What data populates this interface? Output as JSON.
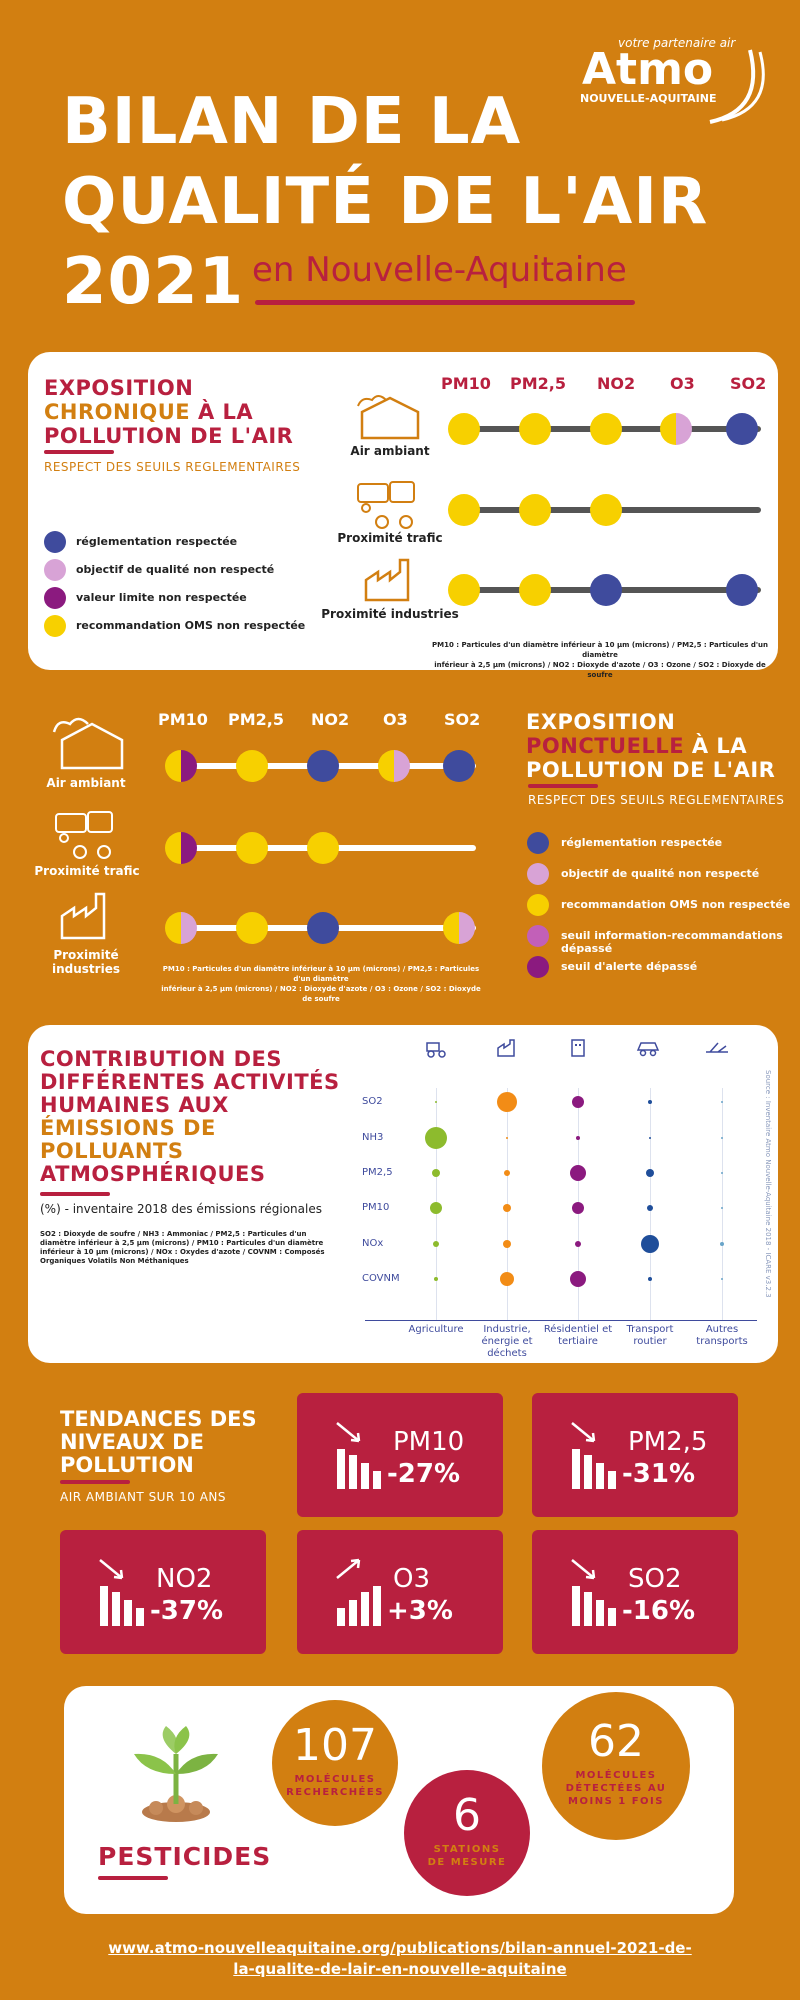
{
  "logo": {
    "tagline": "votre partenaire air",
    "name": "Atmo",
    "region": "NOUVELLE-AQUITAINE"
  },
  "title": {
    "line1": "BILAN DE LA",
    "line2": "QUALITÉ DE L'AIR",
    "line3": "2021",
    "subtitle": "en Nouvelle-Aquitaine"
  },
  "chronic": {
    "title_1": "EXPOSITION",
    "title_2": "CHRONIQUE",
    "title_3": " À LA",
    "title_4": "POLLUTION DE L'AIR",
    "subtitle": "RESPECT DES SEUILS REGLEMENTAIRES",
    "pollutants": [
      "PM10",
      "PM2,5",
      "NO2",
      "O3",
      "SO2"
    ],
    "rows": [
      "Air ambiant",
      "Proximité trafic",
      "Proximité industries"
    ],
    "legend": [
      "réglementation respectée",
      "objectif de qualité non respecté",
      "valeur limite non respectée",
      "recommandation OMS non respectée"
    ],
    "note_1": "PM10 : Particules d'un diamètre inférieur à 10 µm (microns) / PM2,5 : Particules d'un diamètre",
    "note_2": "inférieur à 2,5 µm (microns) / NO2 : Dioxyde d'azote / O3 : Ozone / SO2 : Dioxyde de soufre"
  },
  "punctual": {
    "title_1": "EXPOSITION",
    "title_2": "PONCTUELLE",
    "title_3": " À LA",
    "title_4": "POLLUTION DE L'AIR",
    "subtitle": "RESPECT DES SEUILS REGLEMENTAIRES",
    "pollutants": [
      "PM10",
      "PM2,5",
      "NO2",
      "O3",
      "SO2"
    ],
    "rows": [
      "Air ambiant",
      "Proximité trafic",
      "Proximité industries"
    ],
    "legend": [
      "réglementation respectée",
      "objectif de qualité non respecté",
      "recommandation OMS non respectée",
      "seuil information-recommandations dépassé",
      "seuil d'alerte dépassé"
    ],
    "note_1": "PM10 : Particules d'un diamètre inférieur à 10 µm (microns) / PM2,5 : Particules d'un diamètre",
    "note_2": "inférieur à 2,5 µm (microns) / NO2 : Dioxyde d'azote / O3 : Ozone / SO2 : Dioxyde de soufre"
  },
  "contribution": {
    "title_1": "CONTRIBUTION DES",
    "title_2": "DIFFÉRENTES ACTIVITÉS",
    "title_3": "HUMAINES AUX",
    "title_4": "ÉMISSIONS DE",
    "title_5": "POLLUANTS",
    "title_6": "ATMOSPHÉRIQUES",
    "subtitle": "(%) - inventaire 2018 des émissions régionales",
    "note": "SO2 : Dioxyde de soufre / NH3 : Ammoniac / PM2,5 : Particules d'un diamètre inférieur à 2,5 µm (microns) / PM10 : Particules d'un diamètre inférieur à 10 µm (microns) / NOx : Oxydes d'azote / COVNM : Composés Organiques Volatils Non Méthaniques",
    "source": "Source : Inventaire Atmo Nouvelle-Aquitaine 2018 - ICARE v3.2.3",
    "rows": [
      "SO2",
      "NH3",
      "PM2,5",
      "PM10",
      "NOx",
      "COVNM"
    ],
    "cols": [
      "Agriculture",
      "Industrie, énergie et déchets",
      "Résidentiel et tertiaire",
      "Transport routier",
      "Autres transports"
    ],
    "colors": [
      "#8dbb2d",
      "#f28c16",
      "#8b1a7f",
      "#1f4e9a",
      "#6aa5c9"
    ],
    "sizes": [
      [
        2,
        20,
        12,
        4,
        2
      ],
      [
        22,
        2,
        4,
        2,
        2
      ],
      [
        8,
        6,
        16,
        8,
        2
      ],
      [
        12,
        8,
        12,
        6,
        2
      ],
      [
        6,
        8,
        6,
        18,
        4
      ],
      [
        4,
        14,
        16,
        4,
        2
      ]
    ]
  },
  "trends": {
    "title_1": "TENDANCES DES",
    "title_2": "NIVEAUX DE",
    "title_3": "POLLUTION",
    "subtitle": "AIR AMBIANT SUR 10 ANS",
    "items": [
      {
        "name": "PM10",
        "value": "-27%",
        "dir": "down"
      },
      {
        "name": "PM2,5",
        "value": "-31%",
        "dir": "down"
      },
      {
        "name": "NO2",
        "value": "-37%",
        "dir": "down"
      },
      {
        "name": "O3",
        "value": "+3%",
        "dir": "up"
      },
      {
        "name": "SO2",
        "value": "-16%",
        "dir": "down"
      }
    ]
  },
  "pesticides": {
    "title": "PESTICIDES",
    "c1_num": "107",
    "c1_lbl_1": "MOLÉCULES",
    "c1_lbl_2": "RECHERCHÉES",
    "c2_num": "6",
    "c2_lbl_1": "STATIONS",
    "c2_lbl_2": "DE MESURE",
    "c3_num": "62",
    "c3_lbl_1": "MOLÉCULES",
    "c3_lbl_2": "DÉTECTÉES AU",
    "c3_lbl_3": "MOINS 1 FOIS"
  },
  "footer": {
    "line1": "www.atmo-nouvelleaquitaine.org/publications/bilan-annuel-2021-de-",
    "line2": "la-qualite-de-lair-en-nouvelle-aquitaine"
  }
}
